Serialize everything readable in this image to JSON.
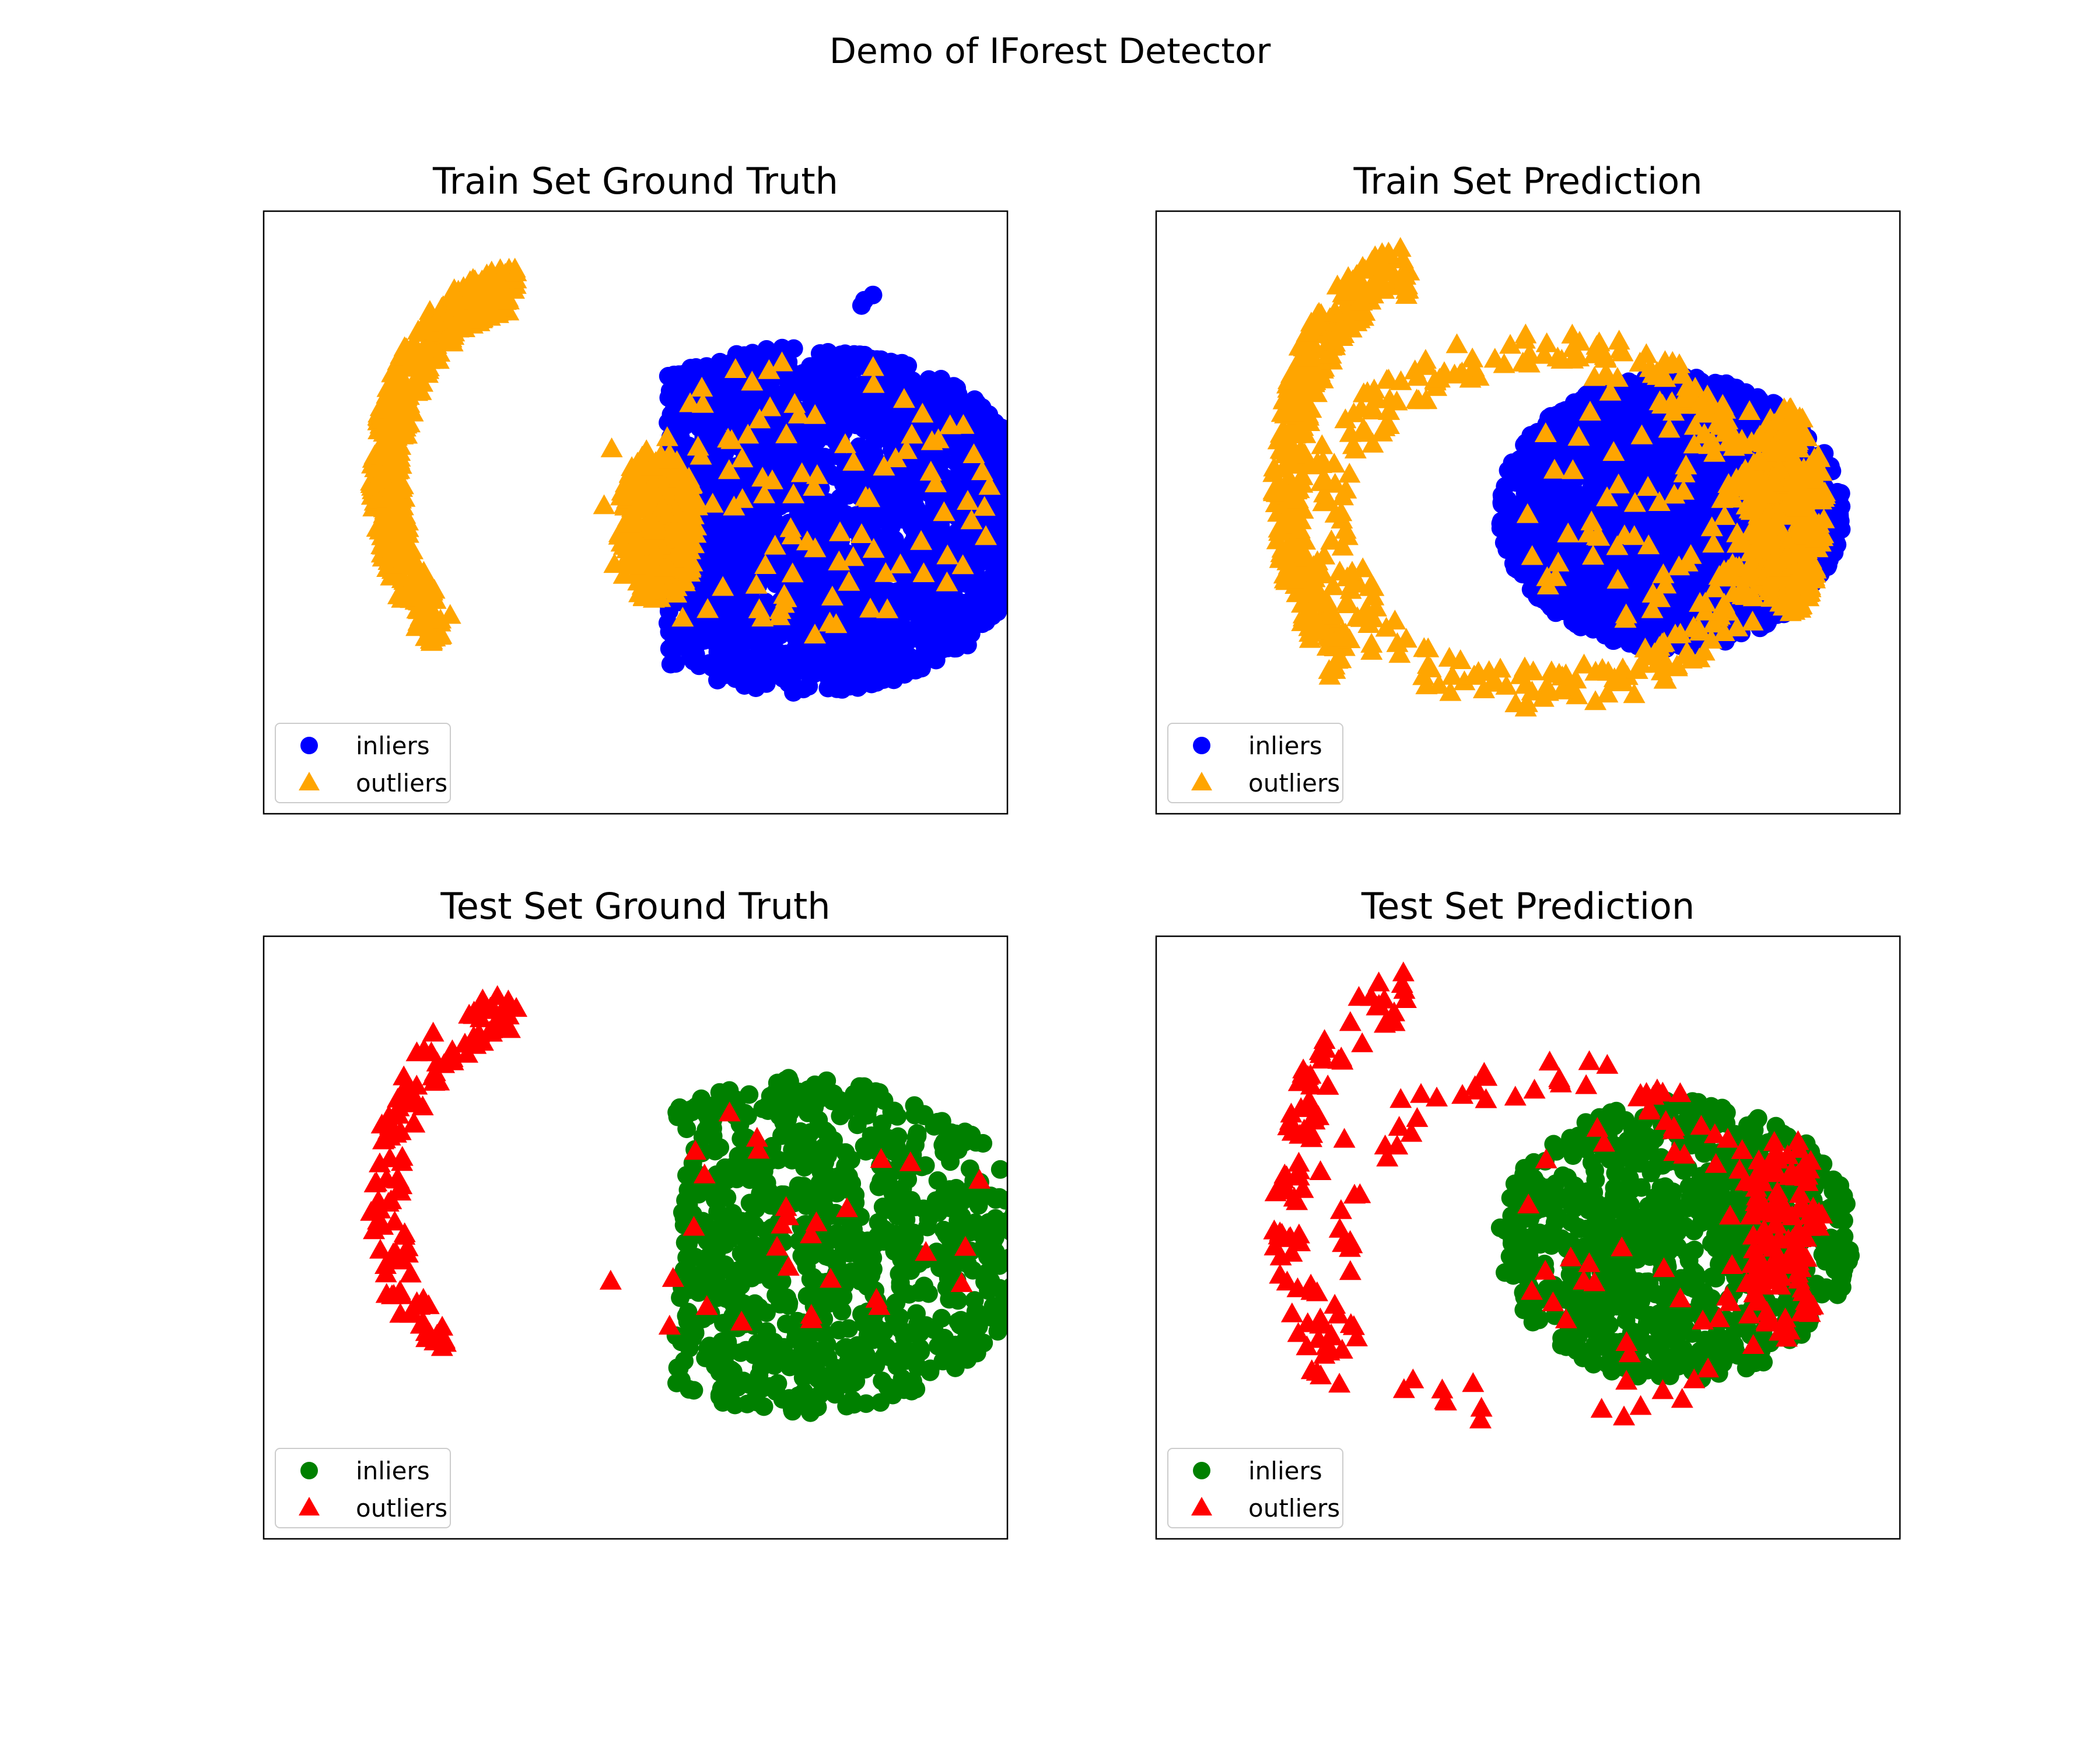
{
  "figure": {
    "suptitle": "Demo of IForest Detector"
  },
  "chart_data": [
    {
      "type": "scatter",
      "title": "Train Set Ground Truth",
      "xlabel": "",
      "ylabel": "",
      "grid": false,
      "ticks": false,
      "legend_position": "lower-left",
      "series": [
        {
          "name": "inliers",
          "marker": "circle",
          "color": "#0000ff",
          "clusters": [
            {
              "cx": 0.58,
              "cy": 0.12,
              "sx": 0.85,
              "sy": 0.66,
              "n": 2200,
              "shape": "ellipse",
              "bias_x": 1.0
            }
          ],
          "points": [
            [
              0.83,
              0.98
            ],
            [
              0.8,
              0.96
            ],
            [
              0.79,
              0.94
            ]
          ]
        },
        {
          "name": "outliers",
          "marker": "triangle",
          "color": "#ffa500",
          "clusters": [
            {
              "cx": 0.06,
              "cy": 0.33,
              "sx": 0.16,
              "sy": 0.22,
              "n": 520,
              "shape": "arc"
            },
            {
              "cx": 0.08,
              "cy": 0.1,
              "sx": 0.14,
              "sy": 0.3,
              "n": 260,
              "shape": "ellipse"
            },
            {
              "cx": 0.55,
              "cy": 0.2,
              "sx": 0.7,
              "sy": 0.55,
              "n": 110,
              "shape": "ellipse"
            }
          ],
          "points": []
        }
      ]
    },
    {
      "type": "scatter",
      "title": "Train Set Prediction",
      "xlabel": "",
      "ylabel": "",
      "grid": false,
      "ticks": false,
      "legend_position": "lower-left",
      "series": [
        {
          "name": "inliers",
          "marker": "circle",
          "color": "#0000ff",
          "clusters": [
            {
              "cx": 0.5,
              "cy": 0.15,
              "sx": 0.6,
              "sy": 0.52,
              "n": 2300,
              "shape": "ellipse"
            }
          ],
          "points": []
        },
        {
          "name": "outliers",
          "marker": "triangle",
          "color": "#ffa500",
          "clusters": [
            {
              "cx": 0.06,
              "cy": 0.3,
              "sx": 0.15,
              "sy": 0.25,
              "n": 360,
              "shape": "arc"
            },
            {
              "cx": 0.9,
              "cy": 0.15,
              "sx": 0.14,
              "sy": 0.4,
              "n": 360,
              "shape": "ellipse"
            },
            {
              "cx": 0.5,
              "cy": 0.3,
              "sx": 0.85,
              "sy": 0.72,
              "n": 320,
              "shape": "ring"
            },
            {
              "cx": 0.5,
              "cy": 0.15,
              "sx": 0.55,
              "sy": 0.5,
              "n": 90,
              "shape": "ellipse"
            }
          ],
          "points": []
        }
      ]
    },
    {
      "type": "scatter",
      "title": "Test Set Ground Truth",
      "xlabel": "",
      "ylabel": "",
      "grid": false,
      "ticks": false,
      "legend_position": "lower-left",
      "series": [
        {
          "name": "inliers",
          "marker": "circle",
          "color": "#008000",
          "clusters": [
            {
              "cx": 0.58,
              "cy": 0.12,
              "sx": 0.8,
              "sy": 0.64,
              "n": 880,
              "shape": "ellipse",
              "bias_x": 1.0
            }
          ],
          "points": []
        },
        {
          "name": "outliers",
          "marker": "triangle",
          "color": "#ff0000",
          "clusters": [
            {
              "cx": 0.06,
              "cy": 0.33,
              "sx": 0.16,
              "sy": 0.22,
              "n": 120,
              "shape": "arc"
            },
            {
              "cx": 0.55,
              "cy": 0.2,
              "sx": 0.7,
              "sy": 0.55,
              "n": 30,
              "shape": "ellipse"
            }
          ],
          "points": []
        }
      ]
    },
    {
      "type": "scatter",
      "title": "Test Set Prediction",
      "xlabel": "",
      "ylabel": "",
      "grid": false,
      "ticks": false,
      "legend_position": "lower-left",
      "series": [
        {
          "name": "inliers",
          "marker": "circle",
          "color": "#008000",
          "clusters": [
            {
              "cx": 0.52,
              "cy": 0.14,
              "sx": 0.62,
              "sy": 0.54,
              "n": 880,
              "shape": "ellipse"
            }
          ],
          "points": []
        },
        {
          "name": "outliers",
          "marker": "triangle",
          "color": "#ff0000",
          "clusters": [
            {
              "cx": 0.06,
              "cy": 0.3,
              "sx": 0.15,
              "sy": 0.25,
              "n": 90,
              "shape": "arc"
            },
            {
              "cx": 0.9,
              "cy": 0.15,
              "sx": 0.14,
              "sy": 0.4,
              "n": 110,
              "shape": "ellipse"
            },
            {
              "cx": 0.5,
              "cy": 0.3,
              "sx": 0.85,
              "sy": 0.72,
              "n": 90,
              "shape": "ring"
            },
            {
              "cx": 0.5,
              "cy": 0.15,
              "sx": 0.55,
              "sy": 0.5,
              "n": 30,
              "shape": "ellipse"
            }
          ],
          "points": []
        }
      ]
    }
  ]
}
